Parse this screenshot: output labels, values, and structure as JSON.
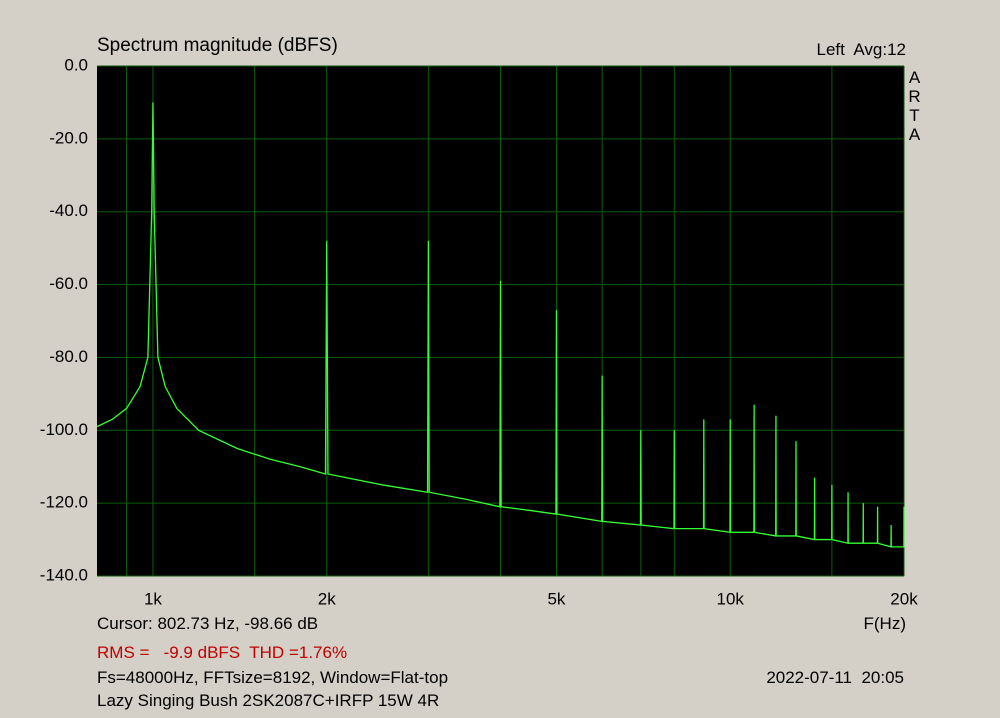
{
  "chart_data": {
    "type": "line",
    "title": "Spectrum magnitude (dBFS)",
    "channel": "Left  Avg:12",
    "brand": "ARTA",
    "cursor": "Cursor: 802.73 Hz, -98.66 dB",
    "xlabel": "F(Hz)",
    "rms": "RMS =   -9.9 dBFS  THD =1.76%",
    "settings": "Fs=48000Hz, FFTsize=8192, Window=Flat-top",
    "timestamp": "2022-07-11  20:05",
    "device": "Lazy Singing Bush 2SK2087C+IRFP 15W 4R",
    "xscale": "log",
    "grid": true,
    "color": "#33ff33",
    "xlim": [
      800,
      20000
    ],
    "ylim": [
      -140,
      0
    ],
    "xticks": [
      {
        "value": 1000,
        "label": "1k"
      },
      {
        "value": 2000,
        "label": "2k"
      },
      {
        "value": 5000,
        "label": "5k"
      },
      {
        "value": 10000,
        "label": "10k"
      },
      {
        "value": 20000,
        "label": "20k"
      }
    ],
    "xgrid_minor": [
      900,
      1500,
      3000,
      4000,
      6000,
      7000,
      8000,
      15000
    ],
    "yticks": [
      {
        "value": 0,
        "label": "0.0"
      },
      {
        "value": -20,
        "label": "-20.0"
      },
      {
        "value": -40,
        "label": "-40.0"
      },
      {
        "value": -60,
        "label": "-60.0"
      },
      {
        "value": -80,
        "label": "-80.0"
      },
      {
        "value": -100,
        "label": "-100.0"
      },
      {
        "value": -120,
        "label": "-120.0"
      },
      {
        "value": -140,
        "label": "-140.0"
      }
    ],
    "x": [
      800,
      850,
      900,
      950,
      980,
      995,
      1000,
      1005,
      1020,
      1050,
      1100,
      1200,
      1400,
      1600,
      1800,
      1990,
      2000,
      2010,
      2500,
      2990,
      3000,
      3010,
      3500,
      3990,
      4000,
      4010,
      4500,
      4990,
      5000,
      5010,
      5990,
      6000,
      6010,
      6990,
      7000,
      7010,
      7990,
      8000,
      8010,
      8990,
      9000,
      9010,
      9990,
      10000,
      10010,
      10990,
      11000,
      11010,
      11990,
      12000,
      12010,
      12990,
      13000,
      13010,
      13990,
      14000,
      14010,
      14990,
      15000,
      15010,
      15990,
      16000,
      16010,
      16990,
      17000,
      17010,
      17990,
      18000,
      18010,
      18990,
      19000,
      19010,
      19990,
      20000
    ],
    "values": [
      -99,
      -97,
      -94,
      -88,
      -80,
      -40,
      -10,
      -40,
      -80,
      -88,
      -94,
      -100,
      -105,
      -108,
      -110,
      -112,
      -48,
      -112,
      -115,
      -117,
      -48,
      -117,
      -119,
      -121,
      -59,
      -121,
      -122,
      -123,
      -67,
      -123,
      -125,
      -85,
      -125,
      -126,
      -100,
      -126,
      -127,
      -100,
      -127,
      -127,
      -97,
      -127,
      -128,
      -97,
      -128,
      -128,
      -93,
      -128,
      -129,
      -96,
      -129,
      -129,
      -103,
      -129,
      -130,
      -113,
      -130,
      -130,
      -115,
      -130,
      -131,
      -117,
      -131,
      -131,
      -120,
      -131,
      -131,
      -121,
      -131,
      -132,
      -126,
      -132,
      -132,
      -121
    ]
  }
}
